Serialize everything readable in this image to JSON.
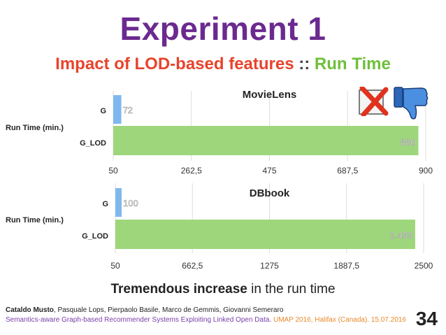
{
  "slide": {
    "title": "Experiment 1",
    "subtitle_part1": "Impact of LOD-based features",
    "subtitle_sep": " :: ",
    "subtitle_part2": "Run Time",
    "conclusion_bold": "Tremendous increase",
    "conclusion_rest": " in the run time",
    "authors_bold": "Cataldo Musto",
    "authors_rest": ", Pasquale Lops, Pierpaolo Basile, Marco de Gemmis, Giovanni Semeraro",
    "paper": "Semantics-aware Graph-based Recommender Systems Exploiting Linked Open Data.",
    "venue": " UMAP 2016, Halifax (Canada). 15.07.2016",
    "page_number": "34"
  },
  "icons": [
    "red-x-icon",
    "thumbs-down-icon"
  ],
  "colors": {
    "g_bar": "#7fb8ee",
    "g_lod_bar": "#9ed67c",
    "title": "#6b2a8f",
    "red": "#e8442c",
    "green": "#6fbf3a"
  },
  "chart_data": [
    {
      "type": "bar",
      "orientation": "horizontal",
      "title": "MovieLens",
      "ylabel": "Run Time (min.)",
      "categories": [
        "G",
        "G_LOD"
      ],
      "values": [
        72,
        880
      ],
      "value_labels": [
        "72",
        "880"
      ],
      "xlim": [
        50,
        900
      ],
      "xticks": [
        "50",
        "262,5",
        "475",
        "687,5",
        "900"
      ]
    },
    {
      "type": "bar",
      "orientation": "horizontal",
      "title": "DBbook",
      "ylabel": "Run Time (min.)",
      "categories": [
        "G",
        "G_LOD"
      ],
      "values": [
        100,
        2433
      ],
      "value_labels": [
        "100",
        "2.433"
      ],
      "xlim": [
        50,
        2500
      ],
      "xticks": [
        "50",
        "662,5",
        "1275",
        "1887,5",
        "2500"
      ]
    }
  ]
}
